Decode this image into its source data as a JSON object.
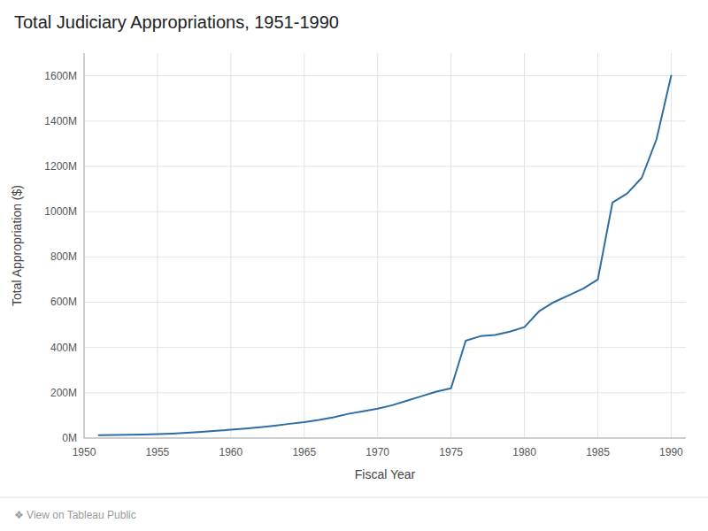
{
  "chart_data": {
    "type": "line",
    "title": "Total Judiciary Appropriations, 1951-1990",
    "x_label": "Fiscal Year",
    "y_label": "Total Appropriation ($)",
    "annotations": [
      "❖ View on Tableau Public"
    ],
    "color": "#2e6da4",
    "grid": true,
    "xlim": [
      1950,
      1991
    ],
    "ylim": [
      0,
      1700000000
    ],
    "xticks": [
      1950,
      1955,
      1960,
      1965,
      1970,
      1975,
      1980,
      1985,
      1990
    ],
    "yticks": [
      {
        "value": 0,
        "label": "0M"
      },
      {
        "value": 200000000,
        "label": "200M"
      },
      {
        "value": 400000000,
        "label": "400M"
      },
      {
        "value": 600000000,
        "label": "600M"
      },
      {
        "value": 800000000,
        "label": "800M"
      },
      {
        "value": 1000000000,
        "label": "1000M"
      },
      {
        "value": 1200000000,
        "label": "1200M"
      },
      {
        "value": 1400000000,
        "label": "1400M"
      },
      {
        "value": 1600000000,
        "label": "1600M"
      }
    ],
    "x": [
      1951,
      1952,
      1953,
      1954,
      1955,
      1956,
      1957,
      1958,
      1959,
      1960,
      1961,
      1962,
      1963,
      1964,
      1965,
      1966,
      1967,
      1968,
      1969,
      1970,
      1971,
      1972,
      1973,
      1974,
      1975,
      1976,
      1977,
      1978,
      1979,
      1980,
      1981,
      1982,
      1983,
      1984,
      1985,
      1986,
      1987,
      1988,
      1989,
      1990
    ],
    "values": [
      13000000,
      14000000,
      15000000,
      16000000,
      18000000,
      20000000,
      23000000,
      27000000,
      32000000,
      37000000,
      42000000,
      48000000,
      55000000,
      63000000,
      70000000,
      80000000,
      92000000,
      107000000,
      118000000,
      130000000,
      145000000,
      165000000,
      185000000,
      205000000,
      220000000,
      430000000,
      450000000,
      455000000,
      470000000,
      490000000,
      560000000,
      600000000,
      630000000,
      660000000,
      700000000,
      1040000000,
      1080000000,
      1150000000,
      1320000000,
      1600000000
    ]
  }
}
